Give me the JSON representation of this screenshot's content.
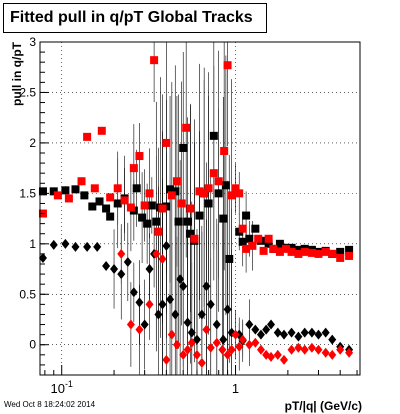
{
  "chart_data": {
    "type": "scatter",
    "title": "Fitted pull in q/pT  Global Tracks",
    "xlabel": "pT/|q| (GeV/c)",
    "ylabel": "pull in q/pT",
    "xscale": "log",
    "xlim": [
      0.075,
      5.2
    ],
    "ylim": [
      -0.3,
      3.0
    ],
    "x_ticks": [
      {
        "value": 0.1,
        "label": "10^-1"
      },
      {
        "value": 1,
        "label": "1"
      }
    ],
    "y_ticks": [
      0,
      0.5,
      1,
      1.5,
      2,
      2.5,
      3
    ],
    "grid": true,
    "legend": "none",
    "series": [
      {
        "marker": "square",
        "color": "#000000",
        "points": [
          [
            0.078,
            1.52
          ],
          [
            0.09,
            1.52
          ],
          [
            0.105,
            1.53
          ],
          [
            0.12,
            1.54
          ],
          [
            0.135,
            1.48
          ],
          [
            0.15,
            1.37
          ],
          [
            0.165,
            1.42
          ],
          [
            0.18,
            1.35
          ],
          [
            0.19,
            1.27
          ],
          [
            0.21,
            1.4
          ],
          [
            0.23,
            1.45
          ],
          [
            0.26,
            1.33
          ],
          [
            0.27,
            1.55
          ],
          [
            0.29,
            1.26
          ],
          [
            0.31,
            1.2
          ],
          [
            0.33,
            1.38
          ],
          [
            0.35,
            1.22
          ],
          [
            0.37,
            1.36
          ],
          [
            0.4,
            1.37
          ],
          [
            0.42,
            1.54
          ],
          [
            0.45,
            1.52
          ],
          [
            0.47,
            1.22
          ],
          [
            0.5,
            1.95
          ],
          [
            0.53,
            1.22
          ],
          [
            0.55,
            1.1
          ],
          [
            0.58,
            1.03
          ],
          [
            0.62,
            1.28
          ],
          [
            0.66,
            1.5
          ],
          [
            0.7,
            1.4
          ],
          [
            0.75,
            2.07
          ],
          [
            0.8,
            1.5
          ],
          [
            0.85,
            1.25
          ],
          [
            0.88,
            1.58
          ],
          [
            0.92,
            0.85
          ],
          [
            1.05,
            1.12
          ],
          [
            1.1,
            1.02
          ],
          [
            1.15,
            1.28
          ],
          [
            1.2,
            1.05
          ],
          [
            1.3,
            1.15
          ],
          [
            1.4,
            1.03
          ],
          [
            1.55,
            1.0
          ],
          [
            1.65,
            0.95
          ],
          [
            1.8,
            1.0
          ],
          [
            1.95,
            0.96
          ],
          [
            2.1,
            0.96
          ],
          [
            2.3,
            0.94
          ],
          [
            2.5,
            0.95
          ],
          [
            2.75,
            0.94
          ],
          [
            3.0,
            0.92
          ],
          [
            3.3,
            0.93
          ],
          [
            3.6,
            0.9
          ],
          [
            4.0,
            0.92
          ],
          [
            4.5,
            0.94
          ]
        ]
      },
      {
        "marker": "square",
        "color": "#ff0000",
        "points": [
          [
            0.078,
            1.3
          ],
          [
            0.095,
            1.48
          ],
          [
            0.11,
            1.45
          ],
          [
            0.13,
            1.62
          ],
          [
            0.14,
            2.06
          ],
          [
            0.155,
            1.55
          ],
          [
            0.17,
            2.12
          ],
          [
            0.19,
            1.46
          ],
          [
            0.21,
            1.55
          ],
          [
            0.23,
            1.43
          ],
          [
            0.25,
            1.36
          ],
          [
            0.26,
            1.75
          ],
          [
            0.28,
            1.87
          ],
          [
            0.3,
            1.38
          ],
          [
            0.32,
            1.5
          ],
          [
            0.34,
            2.82
          ],
          [
            0.36,
            1.12
          ],
          [
            0.38,
            1.35
          ],
          [
            0.4,
            2.0
          ],
          [
            0.43,
            1.48
          ],
          [
            0.46,
            1.62
          ],
          [
            0.49,
            1.4
          ],
          [
            0.52,
            2.15
          ],
          [
            0.55,
            1.35
          ],
          [
            0.58,
            1.05
          ],
          [
            0.62,
            1.52
          ],
          [
            0.66,
            1.5
          ],
          [
            0.7,
            1.55
          ],
          [
            0.75,
            1.7
          ],
          [
            0.8,
            1.62
          ],
          [
            0.86,
            1.92
          ],
          [
            0.9,
            2.77
          ],
          [
            0.95,
            1.48
          ],
          [
            1.0,
            1.55
          ],
          [
            1.05,
            1.5
          ],
          [
            1.1,
            1.15
          ],
          [
            1.15,
            0.95
          ],
          [
            1.25,
            0.98
          ],
          [
            1.35,
            1.05
          ],
          [
            1.45,
            0.93
          ],
          [
            1.55,
            1.05
          ],
          [
            1.65,
            0.95
          ],
          [
            1.8,
            0.92
          ],
          [
            1.95,
            0.95
          ],
          [
            2.1,
            0.92
          ],
          [
            2.3,
            0.9
          ],
          [
            2.5,
            0.92
          ],
          [
            2.75,
            0.91
          ],
          [
            3.0,
            0.9
          ],
          [
            3.3,
            0.92
          ],
          [
            3.6,
            0.9
          ],
          [
            4.0,
            0.86
          ],
          [
            4.5,
            0.88
          ]
        ]
      },
      {
        "marker": "diamond",
        "color": "#000000",
        "points": [
          [
            0.078,
            0.86
          ],
          [
            0.09,
            0.99
          ],
          [
            0.105,
            1.0
          ],
          [
            0.12,
            0.97
          ],
          [
            0.14,
            0.97
          ],
          [
            0.16,
            0.97
          ],
          [
            0.18,
            0.78
          ],
          [
            0.2,
            0.75
          ],
          [
            0.22,
            0.7
          ],
          [
            0.24,
            0.82
          ],
          [
            0.26,
            0.52
          ],
          [
            0.28,
            0.42
          ],
          [
            0.3,
            0.2
          ],
          [
            0.32,
            0.75
          ],
          [
            0.34,
            0.9
          ],
          [
            0.36,
            0.3
          ],
          [
            0.38,
            0.4
          ],
          [
            0.4,
            0.98
          ],
          [
            0.42,
            0.45
          ],
          [
            0.45,
            0.3
          ],
          [
            0.48,
            0.65
          ],
          [
            0.5,
            0.58
          ],
          [
            0.53,
            0.22
          ],
          [
            0.56,
            0.12
          ],
          [
            0.6,
            0.05
          ],
          [
            0.64,
            0.3
          ],
          [
            0.68,
            0.58
          ],
          [
            0.72,
            0.4
          ],
          [
            0.78,
            0.2
          ],
          [
            0.85,
            0.05
          ],
          [
            0.9,
            0.35
          ],
          [
            0.95,
            0.12
          ],
          [
            1.05,
            0.1
          ],
          [
            1.1,
            0.04
          ],
          [
            1.2,
            0.2
          ],
          [
            1.3,
            0.15
          ],
          [
            1.4,
            0.1
          ],
          [
            1.5,
            0.15
          ],
          [
            1.6,
            0.2
          ],
          [
            1.75,
            0.12
          ],
          [
            1.9,
            0.1
          ],
          [
            2.1,
            0.12
          ],
          [
            2.3,
            0.08
          ],
          [
            2.5,
            0.12
          ],
          [
            2.75,
            0.12
          ],
          [
            3.0,
            0.1
          ],
          [
            3.3,
            0.12
          ],
          [
            3.6,
            0.05
          ],
          [
            4.0,
            -0.02
          ],
          [
            4.5,
            -0.05
          ]
        ]
      },
      {
        "marker": "diamond",
        "color": "#ff0000",
        "points": [
          [
            0.22,
            0.9
          ],
          [
            0.25,
            0.2
          ],
          [
            0.28,
            0.15
          ],
          [
            0.32,
            0.4
          ],
          [
            0.35,
            0.9
          ],
          [
            0.38,
            0.85
          ],
          [
            0.4,
            -0.15
          ],
          [
            0.43,
            0.1
          ],
          [
            0.46,
            0.0
          ],
          [
            0.5,
            -0.1
          ],
          [
            0.53,
            -0.05
          ],
          [
            0.56,
            0.02
          ],
          [
            0.6,
            -0.1
          ],
          [
            0.64,
            -0.18
          ],
          [
            0.68,
            0.15
          ],
          [
            0.72,
            -0.03
          ],
          [
            0.78,
            0.02
          ],
          [
            0.84,
            -0.05
          ],
          [
            0.9,
            -0.1
          ],
          [
            0.95,
            -0.05
          ],
          [
            1.0,
            0.1
          ],
          [
            1.05,
            -0.02
          ],
          [
            1.1,
            0.05
          ],
          [
            1.2,
            0.0
          ],
          [
            1.3,
            0.02
          ],
          [
            1.4,
            -0.05
          ],
          [
            1.5,
            -0.1
          ],
          [
            1.6,
            -0.12
          ],
          [
            1.75,
            -0.1
          ],
          [
            1.9,
            -0.15
          ],
          [
            2.1,
            -0.05
          ],
          [
            2.3,
            -0.03
          ],
          [
            2.5,
            -0.05
          ],
          [
            2.75,
            -0.03
          ],
          [
            3.0,
            -0.05
          ],
          [
            3.3,
            -0.08
          ],
          [
            3.6,
            -0.1
          ],
          [
            4.0,
            -0.05
          ],
          [
            4.5,
            -0.08
          ]
        ]
      }
    ]
  },
  "footer": {
    "timestamp": "Wed Oct  8 18:24:02 2014"
  }
}
